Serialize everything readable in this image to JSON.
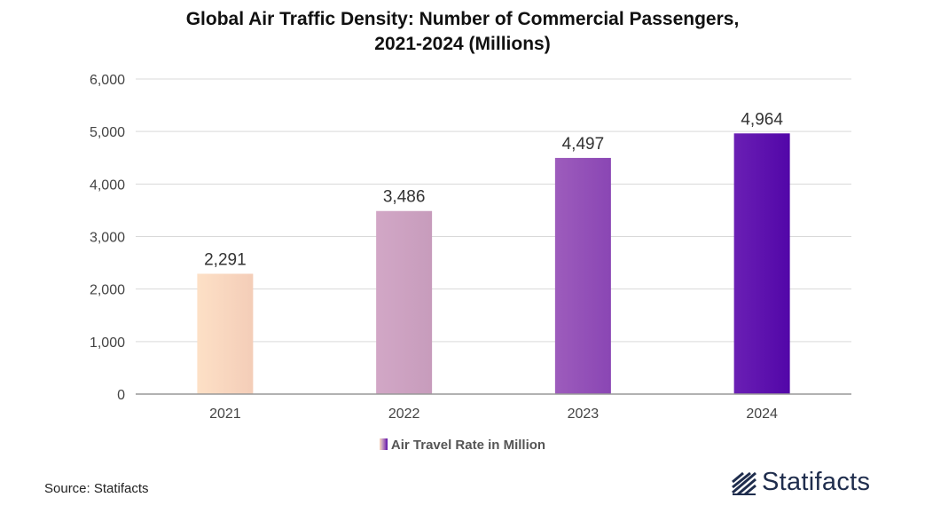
{
  "chart_data": {
    "type": "bar",
    "title_lines": [
      "Global Air Traffic Density: Number of Commercial Passengers,",
      "2021-2024 (Millions)"
    ],
    "categories": [
      "2021",
      "2022",
      "2023",
      "2024"
    ],
    "series": [
      {
        "name": "Air Travel Rate in Million",
        "values": [
          2291,
          3486,
          4497,
          4964
        ]
      }
    ],
    "data_labels": [
      "2,291",
      "3,486",
      "4,497",
      "4,964"
    ],
    "bar_colors": [
      [
        "#fde0c6",
        "#f4cdb8"
      ],
      [
        "#d2a7c6",
        "#c79cbc"
      ],
      [
        "#9d5cbc",
        "#8a46b4"
      ],
      [
        "#6a1fb4",
        "#5206a8"
      ]
    ],
    "xlabel": "",
    "ylabel": "",
    "ylim": [
      0,
      6000
    ],
    "yticks": [
      0,
      1000,
      2000,
      3000,
      4000,
      5000,
      6000
    ],
    "ytick_labels": [
      "0",
      "1,000",
      "2,000",
      "3,000",
      "4,000",
      "5,000",
      "6,000"
    ],
    "grid": true,
    "legend_position": "bottom-center"
  },
  "source": "Source: Statifacts",
  "brand": {
    "name": "Statifacts",
    "color": "#1f2d4d"
  }
}
